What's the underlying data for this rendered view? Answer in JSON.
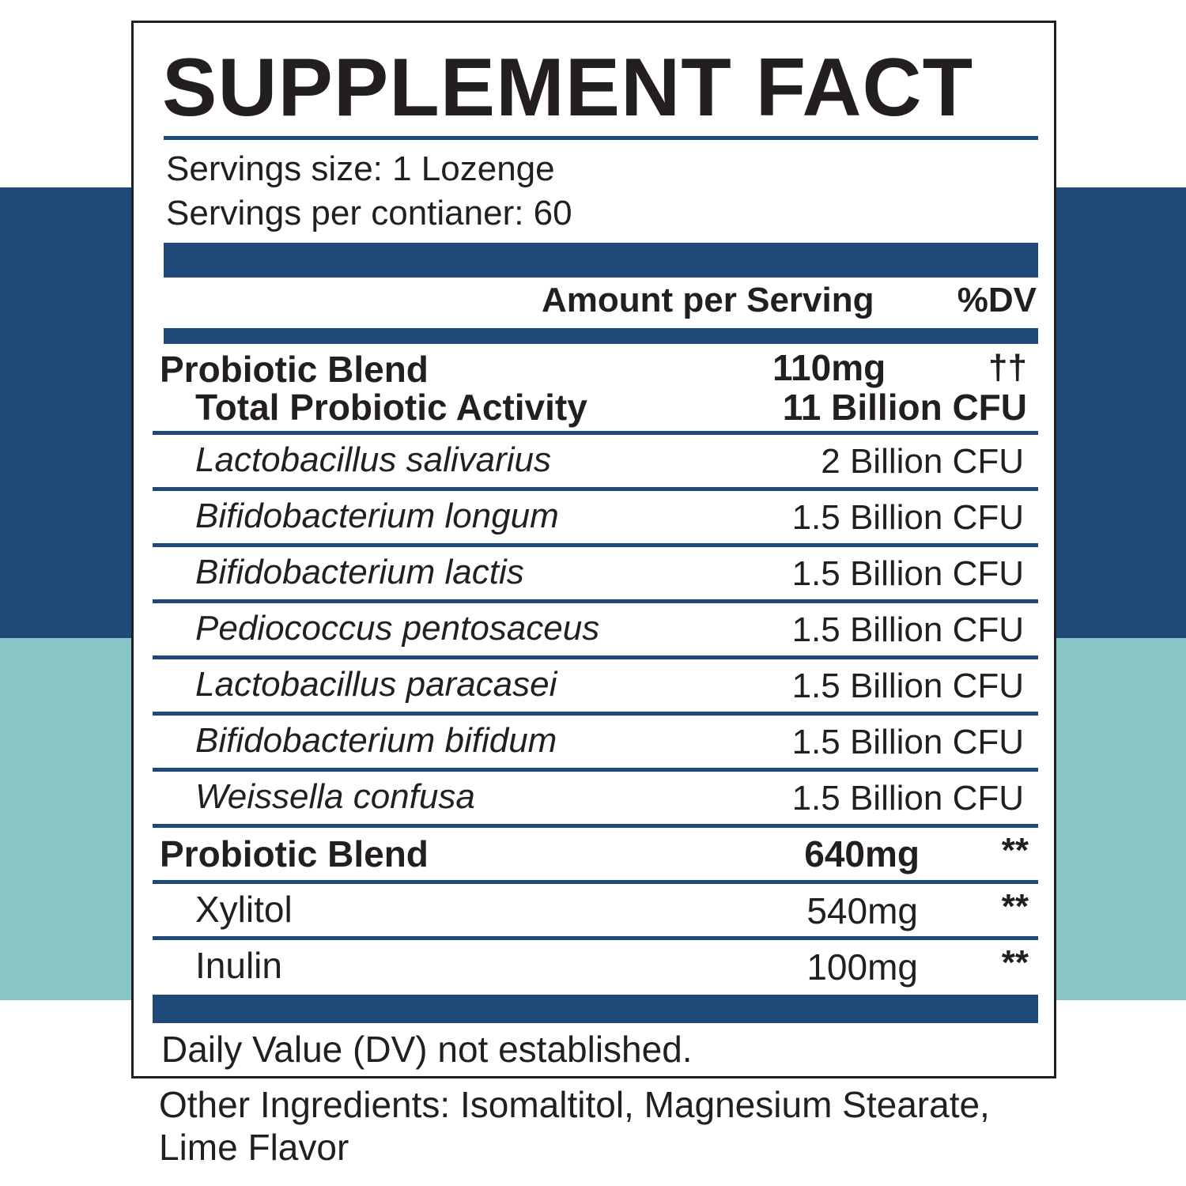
{
  "label": {
    "title": "SUPPLEMENT FACT",
    "serving_size": "Servings size: 1 Lozenge",
    "servings_per_container": "Servings per contianer: 60",
    "header_amount": "Amount per Serving",
    "header_dv": "%DV",
    "blend1": {
      "name": "Probiotic Blend",
      "amount": "110mg",
      "dv": "††",
      "sub_name": "Total Probiotic Activity",
      "sub_amount": "11 Billion CFU"
    },
    "strains": [
      {
        "name": "Lactobacillus salivarius",
        "amount": "2 Billion CFU"
      },
      {
        "name": "Bifidobacterium longum",
        "amount": "1.5 Billion CFU"
      },
      {
        "name": "Bifidobacterium lactis",
        "amount": "1.5 Billion CFU"
      },
      {
        "name": "Pediococcus pentosaceus",
        "amount": "1.5 Billion CFU"
      },
      {
        "name": "Lactobacillus paracasei",
        "amount": "1.5 Billion CFU"
      },
      {
        "name": "Bifidobacterium bifidum",
        "amount": "1.5 Billion CFU"
      },
      {
        "name": "Weissella confusa",
        "amount": "1.5 Billion CFU"
      }
    ],
    "blend2": {
      "name": "Probiotic Blend",
      "amount": "640mg",
      "dv": "**"
    },
    "blend2_items": [
      {
        "name": "Xylitol",
        "amount": "540mg",
        "dv": "**"
      },
      {
        "name": "Inulin",
        "amount": "100mg",
        "dv": "**"
      }
    ],
    "footnote": "Daily Value (DV) not established."
  },
  "other_ingredients": "Other Ingredients: Isomaltitol, Magnesium Stearate, Lime Flavor",
  "colors": {
    "navy": "#1f4979",
    "teal": "#88c5c5",
    "ink": "#231f20"
  }
}
